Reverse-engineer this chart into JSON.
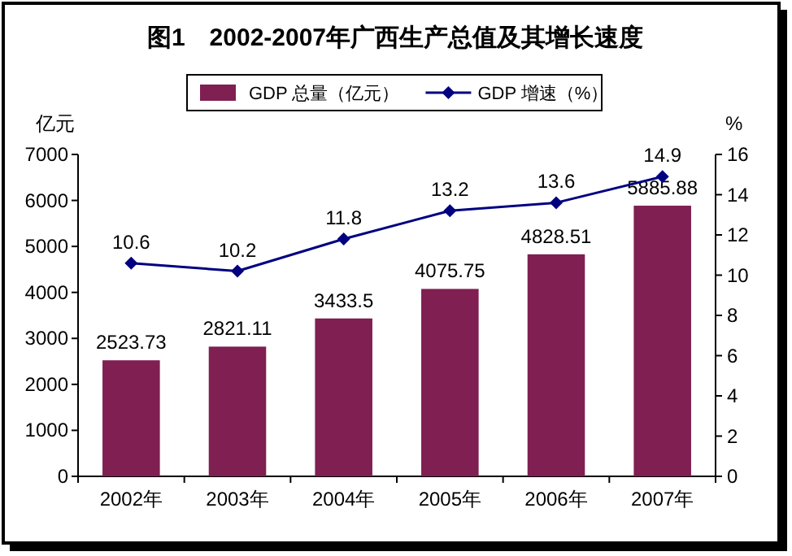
{
  "chart_data": {
    "type": "bar",
    "title": "图1　2002-2007年广西生产总值及其增长速度",
    "ylabel": "亿元",
    "y2label": "%",
    "categories": [
      "2002年",
      "2003年",
      "2004年",
      "2005年",
      "2006年",
      "2007年"
    ],
    "series": [
      {
        "name": "GDP 总量（亿元）",
        "color": "#7f1f52",
        "values": [
          2523.73,
          2821.11,
          3433.5,
          4075.75,
          4828.51,
          5885.88
        ]
      },
      {
        "name": "GDP 增速（%）",
        "type": "line",
        "axis": "y2",
        "color": "#000080",
        "marker": "diamond",
        "values": [
          10.6,
          10.2,
          11.8,
          13.2,
          13.6,
          14.9
        ]
      }
    ],
    "ylim": [
      0,
      7000
    ],
    "yticks": [
      0,
      1000,
      2000,
      3000,
      4000,
      5000,
      6000,
      7000
    ],
    "y2lim": [
      0,
      16
    ],
    "y2ticks": [
      0,
      2,
      4,
      6,
      8,
      10,
      12,
      14,
      16
    ],
    "data_labels": true,
    "legend": "top",
    "grid": false
  }
}
